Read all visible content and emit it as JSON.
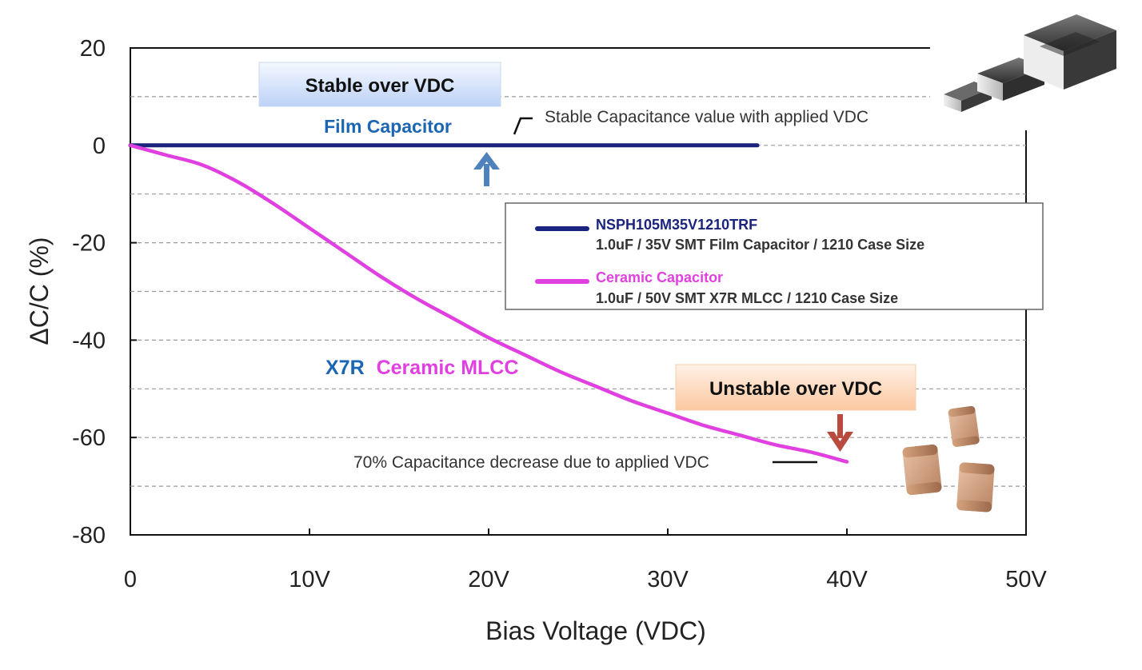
{
  "chart_data": {
    "type": "line",
    "xlabel": "Bias Voltage (VDC)",
    "ylabel": "ΔC/C (%)",
    "xlim": [
      0,
      50
    ],
    "ylim": [
      -80,
      20
    ],
    "x_ticks": [
      0,
      10,
      20,
      30,
      40,
      50
    ],
    "x_tick_labels": [
      "0",
      "10V",
      "20V",
      "30V",
      "40V",
      "50V"
    ],
    "y_ticks": [
      20,
      0,
      -20,
      -40,
      -60,
      -80
    ],
    "y_tick_labels": [
      "20",
      "0",
      "-20",
      "-40",
      "-60",
      "-80"
    ],
    "grid": "horizontal dashed",
    "series": [
      {
        "name": "NSPH105M35V1210TRF",
        "description": "1.0uF  / 35V SMT Film Capacitor / 1210 Case Size",
        "color": "#1a237e",
        "x": [
          0,
          5,
          10,
          15,
          20,
          25,
          30,
          35
        ],
        "y": [
          0,
          0,
          0,
          0,
          0,
          0,
          0,
          0
        ]
      },
      {
        "name": "Ceramic Capacitor",
        "description": "1.0uF  / 50V SMT X7R MLCC / 1210 Case Size",
        "color": "#e040e0",
        "x": [
          0,
          2,
          4,
          6,
          8,
          10,
          12,
          14,
          16,
          18,
          20,
          22,
          24,
          26,
          28,
          30,
          32,
          34,
          36,
          38,
          40
        ],
        "y": [
          0,
          -2,
          -4,
          -7.5,
          -12,
          -17,
          -22,
          -27,
          -31.5,
          -35.5,
          -39.5,
          -43,
          -46.5,
          -49.5,
          -52.5,
          -55,
          -57.5,
          -59.5,
          -61.5,
          -63,
          -65
        ]
      }
    ],
    "legend": "right-center",
    "annotations": {
      "stable_box": "Stable over VDC",
      "film_label": "Film Capacitor",
      "stable_note": "Stable Capacitance value with applied VDC",
      "x7r_word": "X7R",
      "ceramic_mlcc_word": "Ceramic MLCC",
      "unstable_box": "Unstable over VDC",
      "decrease_note": "70% Capacitance decrease due to applied VDC"
    }
  }
}
